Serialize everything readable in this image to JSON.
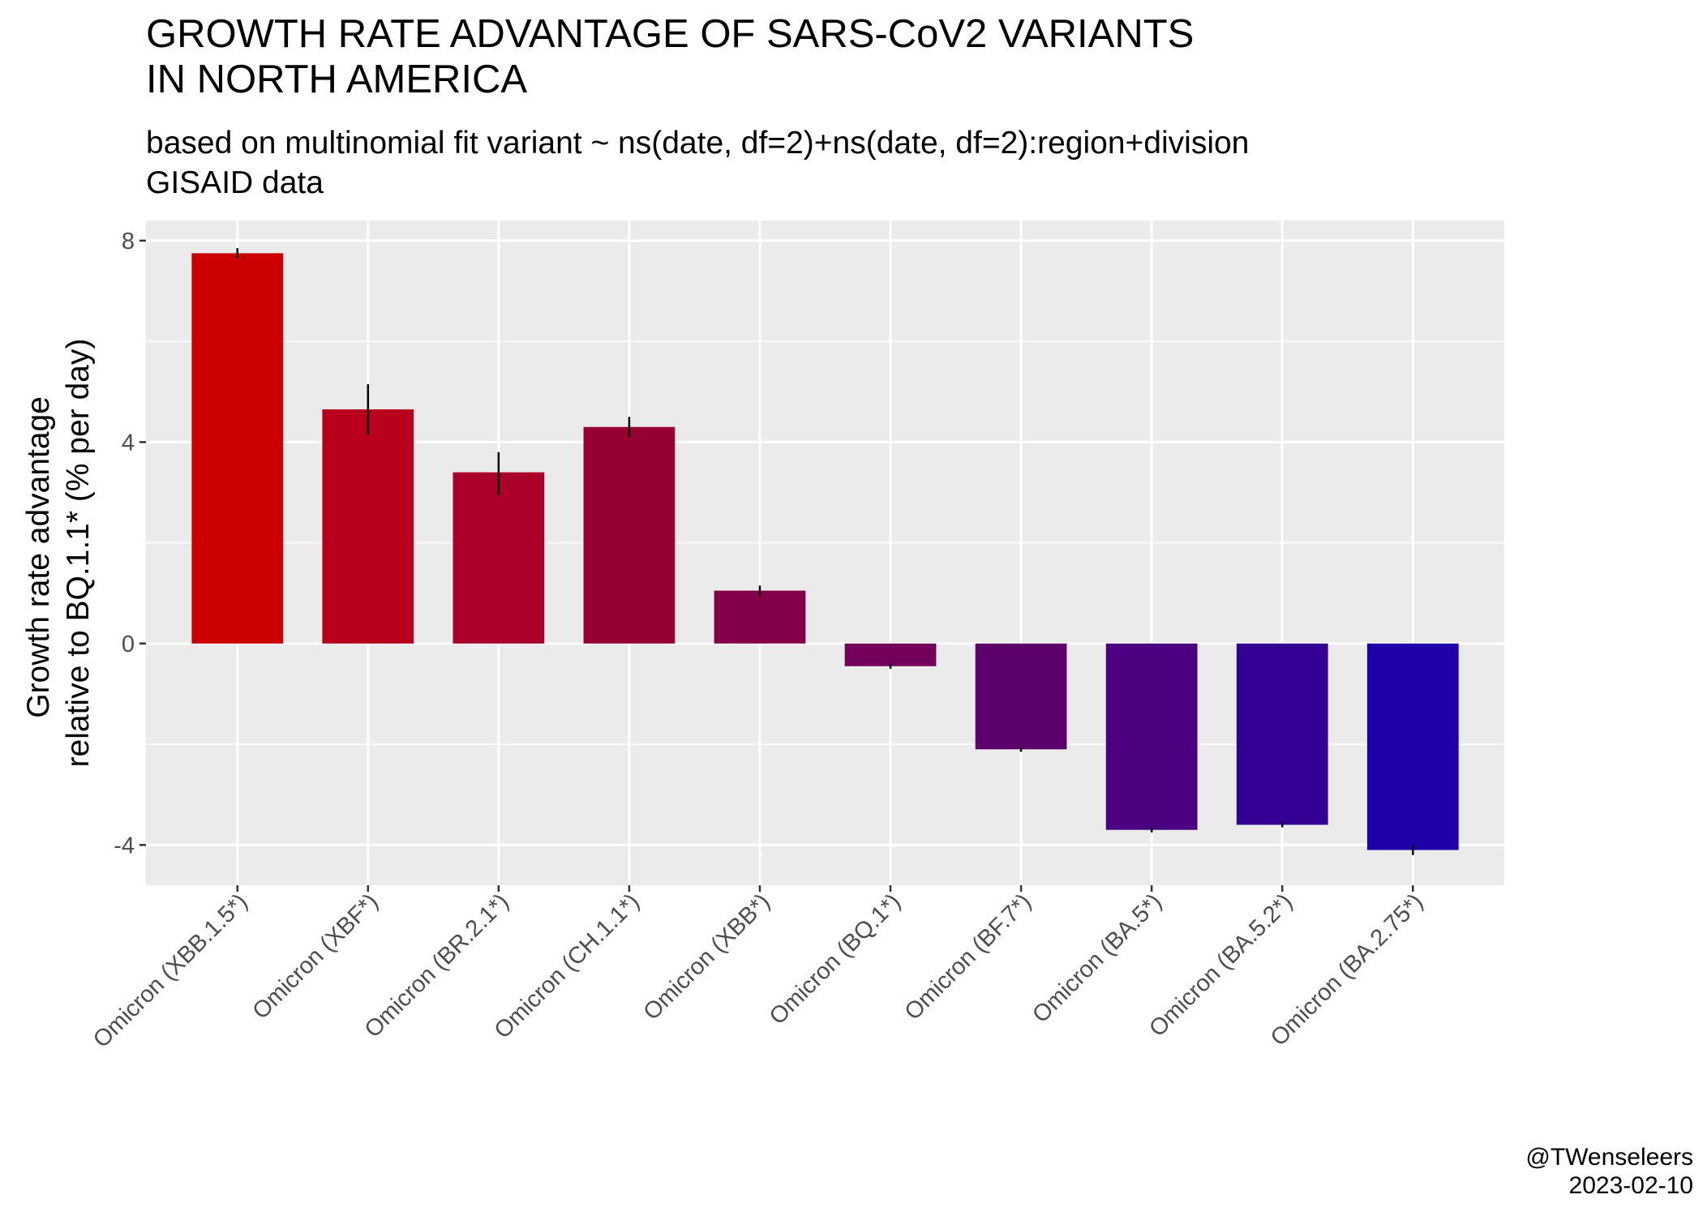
{
  "title_lines": [
    "GROWTH RATE ADVANTAGE OF SARS-CoV2 VARIANTS",
    "IN NORTH AMERICA"
  ],
  "subtitle_lines": [
    "based on multinomial fit variant ~ ns(date, df=2)+ns(date, df=2):region+division",
    "GISAID data"
  ],
  "caption_lines": [
    "@TWenseleers",
    "2023-02-10"
  ],
  "chart_data": {
    "type": "bar",
    "title": "GROWTH RATE ADVANTAGE OF SARS-CoV2 VARIANTS IN NORTH AMERICA",
    "subtitle": "based on multinomial fit variant ~ ns(date, df=2)+ns(date, df=2):region+division GISAID data",
    "xlabel": "",
    "ylabel_lines": [
      "Growth rate advantage",
      "relative to BQ.1.1* (% per day)"
    ],
    "ylim": [
      -4.8,
      8.4
    ],
    "yticks": [
      -4,
      0,
      4,
      8
    ],
    "ytick_labels": [
      "-4",
      "0",
      "4",
      "8"
    ],
    "grid": true,
    "legend": "none",
    "categories": [
      "Omicron (XBB.1.5*)",
      "Omicron (XBF*)",
      "Omicron (BR.2.1*)",
      "Omicron (CH.1.1*)",
      "Omicron (XBB*)",
      "Omicron (BQ.1*)",
      "Omicron (BF.7*)",
      "Omicron (BA.5*)",
      "Omicron (BA.5.2*)",
      "Omicron (BA.2.75*)"
    ],
    "values": [
      7.75,
      4.65,
      3.4,
      4.3,
      1.05,
      -0.45,
      -2.1,
      -3.7,
      -3.6,
      -4.1
    ],
    "error_low": [
      7.65,
      4.15,
      2.95,
      4.1,
      0.95,
      -0.5,
      -2.15,
      -3.75,
      -3.65,
      -4.2
    ],
    "error_high": [
      7.85,
      5.15,
      3.8,
      4.5,
      1.15,
      -0.4,
      -2.05,
      -3.65,
      -3.55,
      -4.0
    ],
    "colors": [
      "#cc0000",
      "#b8001c",
      "#aa0029",
      "#960033",
      "#830048",
      "#72005b",
      "#5c006c",
      "#4a0080",
      "#340094",
      "#2000a8"
    ]
  }
}
